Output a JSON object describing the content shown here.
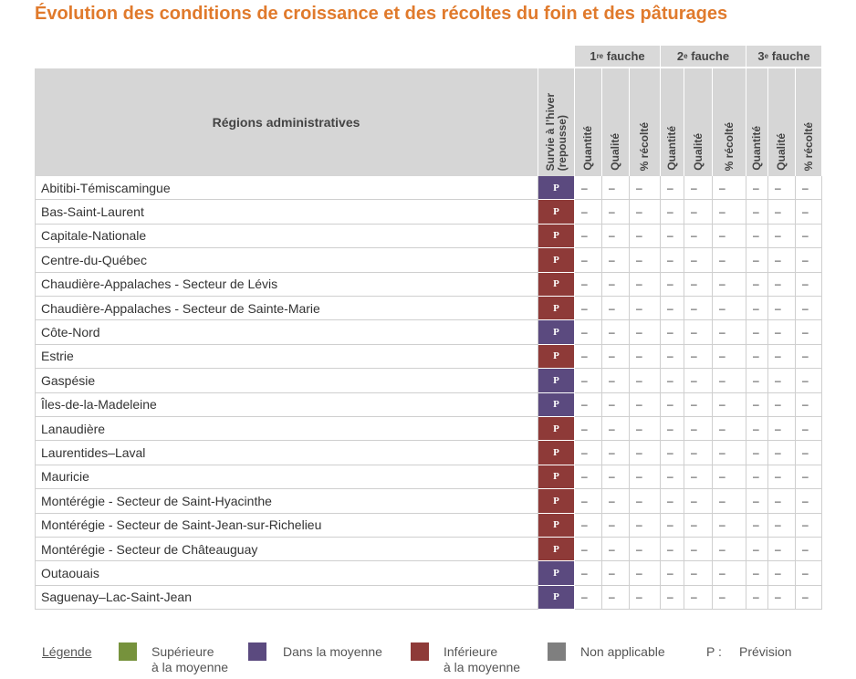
{
  "title": "Évolution des conditions de croissance et des récoltes du foin et des pâturages",
  "table": {
    "region_header": "Régions administratives",
    "survival_header": [
      "Survie à l’hiver",
      "(repousse)"
    ],
    "groups": [
      {
        "num": "1",
        "sup": "re",
        "text": "fauche"
      },
      {
        "num": "2",
        "sup": "e",
        "text": "fauche"
      },
      {
        "num": "3",
        "sup": "e",
        "text": "fauche"
      }
    ],
    "subheaders": [
      "Quantité",
      "Qualité",
      "% récolté",
      "Quantité",
      "Qualité",
      "% récolté",
      "Quantité",
      "Qualité",
      "% récolté"
    ],
    "rows": [
      {
        "region": "Abitibi-Témiscamingue",
        "survival": "P",
        "color": "#5b4a7f",
        "cells": [
          "–",
          "–",
          "–",
          "–",
          "–",
          "–",
          "–",
          "–",
          "–"
        ]
      },
      {
        "region": "Bas-Saint-Laurent",
        "survival": "P",
        "color": "#8e3a38",
        "cells": [
          "–",
          "–",
          "–",
          "–",
          "–",
          "–",
          "–",
          "–",
          "–"
        ]
      },
      {
        "region": "Capitale-Nationale",
        "survival": "P",
        "color": "#8e3a38",
        "cells": [
          "–",
          "–",
          "–",
          "–",
          "–",
          "–",
          "–",
          "–",
          "–"
        ]
      },
      {
        "region": "Centre-du-Québec",
        "survival": "P",
        "color": "#8e3a38",
        "cells": [
          "–",
          "–",
          "–",
          "–",
          "–",
          "–",
          "–",
          "–",
          "–"
        ]
      },
      {
        "region": "Chaudière-Appalaches - Secteur de Lévis",
        "survival": "P",
        "color": "#8e3a38",
        "cells": [
          "–",
          "–",
          "–",
          "–",
          "–",
          "–",
          "–",
          "–",
          "–"
        ]
      },
      {
        "region": "Chaudière-Appalaches - Secteur de Sainte-Marie",
        "survival": "P",
        "color": "#8e3a38",
        "cells": [
          "–",
          "–",
          "–",
          "–",
          "–",
          "–",
          "–",
          "–",
          "–"
        ]
      },
      {
        "region": "Côte-Nord",
        "survival": "P",
        "color": "#5b4a7f",
        "cells": [
          "–",
          "–",
          "–",
          "–",
          "–",
          "–",
          "–",
          "–",
          "–"
        ]
      },
      {
        "region": "Estrie",
        "survival": "P",
        "color": "#8e3a38",
        "cells": [
          "–",
          "–",
          "–",
          "–",
          "–",
          "–",
          "–",
          "–",
          "–"
        ]
      },
      {
        "region": "Gaspésie",
        "survival": "P",
        "color": "#5b4a7f",
        "cells": [
          "–",
          "–",
          "–",
          "–",
          "–",
          "–",
          "–",
          "–",
          "–"
        ]
      },
      {
        "region": "Îles-de-la-Madeleine",
        "survival": "P",
        "color": "#5b4a7f",
        "cells": [
          "–",
          "–",
          "–",
          "–",
          "–",
          "–",
          "–",
          "–",
          "–"
        ]
      },
      {
        "region": "Lanaudière",
        "survival": "P",
        "color": "#8e3a38",
        "cells": [
          "–",
          "–",
          "–",
          "–",
          "–",
          "–",
          "–",
          "–",
          "–"
        ]
      },
      {
        "region": "Laurentides–Laval",
        "survival": "P",
        "color": "#8e3a38",
        "cells": [
          "–",
          "–",
          "–",
          "–",
          "–",
          "–",
          "–",
          "–",
          "–"
        ]
      },
      {
        "region": "Mauricie",
        "survival": "P",
        "color": "#8e3a38",
        "cells": [
          "–",
          "–",
          "–",
          "–",
          "–",
          "–",
          "–",
          "–",
          "–"
        ]
      },
      {
        "region": "Montérégie - Secteur de Saint-Hyacinthe",
        "survival": "P",
        "color": "#8e3a38",
        "cells": [
          "–",
          "–",
          "–",
          "–",
          "–",
          "–",
          "–",
          "–",
          "–"
        ]
      },
      {
        "region": "Montérégie - Secteur de Saint-Jean-sur-Richelieu",
        "survival": "P",
        "color": "#8e3a38",
        "cells": [
          "–",
          "–",
          "–",
          "–",
          "–",
          "–",
          "–",
          "–",
          "–"
        ]
      },
      {
        "region": "Montérégie - Secteur de Châteauguay",
        "survival": "P",
        "color": "#8e3a38",
        "cells": [
          "–",
          "–",
          "–",
          "–",
          "–",
          "–",
          "–",
          "–",
          "–"
        ]
      },
      {
        "region": "Outaouais",
        "survival": "P",
        "color": "#5b4a7f",
        "cells": [
          "–",
          "–",
          "–",
          "–",
          "–",
          "–",
          "–",
          "–",
          "–"
        ]
      },
      {
        "region": "Saguenay–Lac-Saint-Jean",
        "survival": "P",
        "color": "#5b4a7f",
        "cells": [
          "–",
          "–",
          "–",
          "–",
          "–",
          "–",
          "–",
          "–",
          "–"
        ]
      }
    ]
  },
  "legend": {
    "title": "Légende",
    "items": [
      {
        "color": "#76923c",
        "label": [
          "Supérieure",
          "à la moyenne"
        ]
      },
      {
        "color": "#5b4a7f",
        "label": [
          "Dans la moyenne"
        ]
      },
      {
        "color": "#8e3a38",
        "label": [
          "Inférieure",
          "à la moyenne"
        ]
      },
      {
        "color": "#7f7f7f",
        "label": [
          "Non applicable"
        ]
      }
    ],
    "note": {
      "key": "P :",
      "text": "Prévision"
    }
  }
}
